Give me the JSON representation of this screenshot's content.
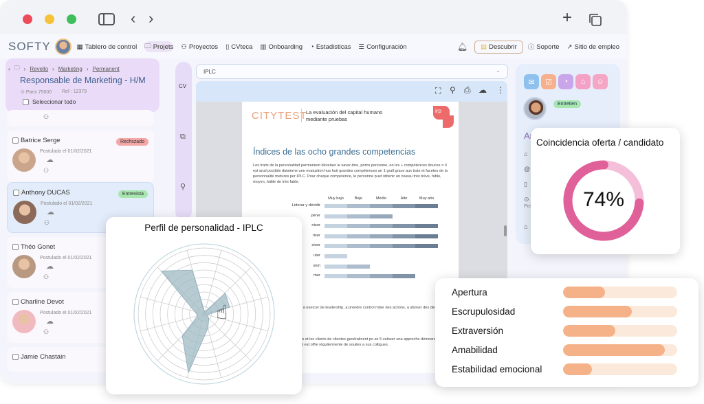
{
  "nav": {
    "logo": "SOFTY",
    "items": [
      {
        "label": "Tablero de control",
        "icon": "grid-icon"
      },
      {
        "label": "Projets",
        "icon": "folder-icon"
      },
      {
        "label": "Proyectos",
        "icon": "users-icon"
      },
      {
        "label": "CVteca",
        "icon": "book-icon"
      },
      {
        "label": "Onboarding",
        "icon": "bar-chart-icon"
      },
      {
        "label": "Estadisticas",
        "icon": "gauge-icon"
      },
      {
        "label": "Configuración",
        "icon": "sliders-icon"
      }
    ],
    "discover": "Descubrir",
    "support": "Soporte",
    "job_site": "Sitio de empleo"
  },
  "job": {
    "breadcrumb": [
      "Revello",
      "Marketing",
      "Permanent"
    ],
    "title": "Responsable de Marketing - H/M",
    "location": "Paris 75000",
    "ref": "Ref : 12379",
    "select_all": "Seleccionar todo"
  },
  "candidates": [
    {
      "name": "Batrice Serge",
      "applied": "Postulado el 01/02/2021",
      "status": "Rechszado",
      "status_color": "#f4a6a6"
    },
    {
      "name": "Anthony DUCAS",
      "applied": "Postulado el 01/02/2021",
      "status": "Entrevista",
      "status_color": "#a8e6b0"
    },
    {
      "name": "Théo Gonet",
      "applied": "Postulado el 01/02/2021",
      "status": ""
    },
    {
      "name": "Charline Devot",
      "applied": "Postulado el 01/02/2021",
      "status": ""
    },
    {
      "name": "Jamie Chastain",
      "applied": "",
      "status": ""
    }
  ],
  "strip": {
    "cv": "CV"
  },
  "viewer": {
    "select_value": "IPLC",
    "doc": {
      "logo": "CITYTEST",
      "tagline": "La evaluación del capital humano mediante pruebas",
      "badge": "irp",
      "heading": "Índices de las ocho grandes competencias",
      "intro": "Les traits de la personalitad permenient dévelaer le saver-ibre, porns personne, on les + compétences douces = Il est anal poctible duisterne une evalustion hus huit grandes compétences an 1 grall grace aux trats et facetes de la personnalite metures per IPLC. Pour chaque competence, le personne puet obtenir un niveau très trève, fable, moyen, faible de très fable.",
      "levels": [
        "Muy bajo",
        "Bajo",
        "Medio",
        "Alto",
        "Muy alto"
      ],
      "rows": [
        {
          "label": "Liderar y décidir",
          "level": 5
        },
        {
          "label": "pérer",
          "level": 3
        },
        {
          "label": "niser",
          "level": 5
        },
        {
          "label": "riser",
          "level": 5
        },
        {
          "label": "sioer",
          "level": 5
        },
        {
          "label": "uter",
          "level": 1
        },
        {
          "label": "sion",
          "level": 2
        },
        {
          "label": "mer",
          "level": 4
        }
      ],
      "para1": "ment une hits bonne capaciti à exercer de leadership, a prendre control mber des actions, a ationer des directives ei a assumer des responsabilid",
      "sub2": "rer",
      "para2": "ves ses colligues, ses patrons et les clients de clientes geoéralinent po se 5 valoser una approche démosratque e collaborativa de traval. Elle et est offre réguliermente de souites a sus colligues."
    }
  },
  "profile": {
    "status": "Entretien",
    "name_initial": "Ar",
    "pos_label": "Pos",
    "action_colors": [
      "#8ec1ee",
      "#f7b08e",
      "#c9a6ea",
      "#f3a2c6",
      "#f4a6c4"
    ]
  },
  "match": {
    "title": "Coincidencia oferta / candidato",
    "value": 74,
    "label": "74%",
    "color": "#e0609a",
    "track": "#f5bfd9"
  },
  "radar": {
    "title": "Perfil de personalidad - IPLC",
    "max": 10,
    "values": [
      0.3,
      4.5,
      4,
      0.5,
      1,
      2.2,
      9.2,
      4.7,
      1,
      1.5,
      9.2,
      6.9
    ],
    "fill": "#9fbac4"
  },
  "traits": [
    {
      "label": "Apertura",
      "value": 37
    },
    {
      "label": "Escrupulosidad",
      "value": 60
    },
    {
      "label": "Extraversión",
      "value": 46
    },
    {
      "label": "Amabilidad",
      "value": 89
    },
    {
      "label": "Estabilidad emocional",
      "value": 25
    }
  ]
}
